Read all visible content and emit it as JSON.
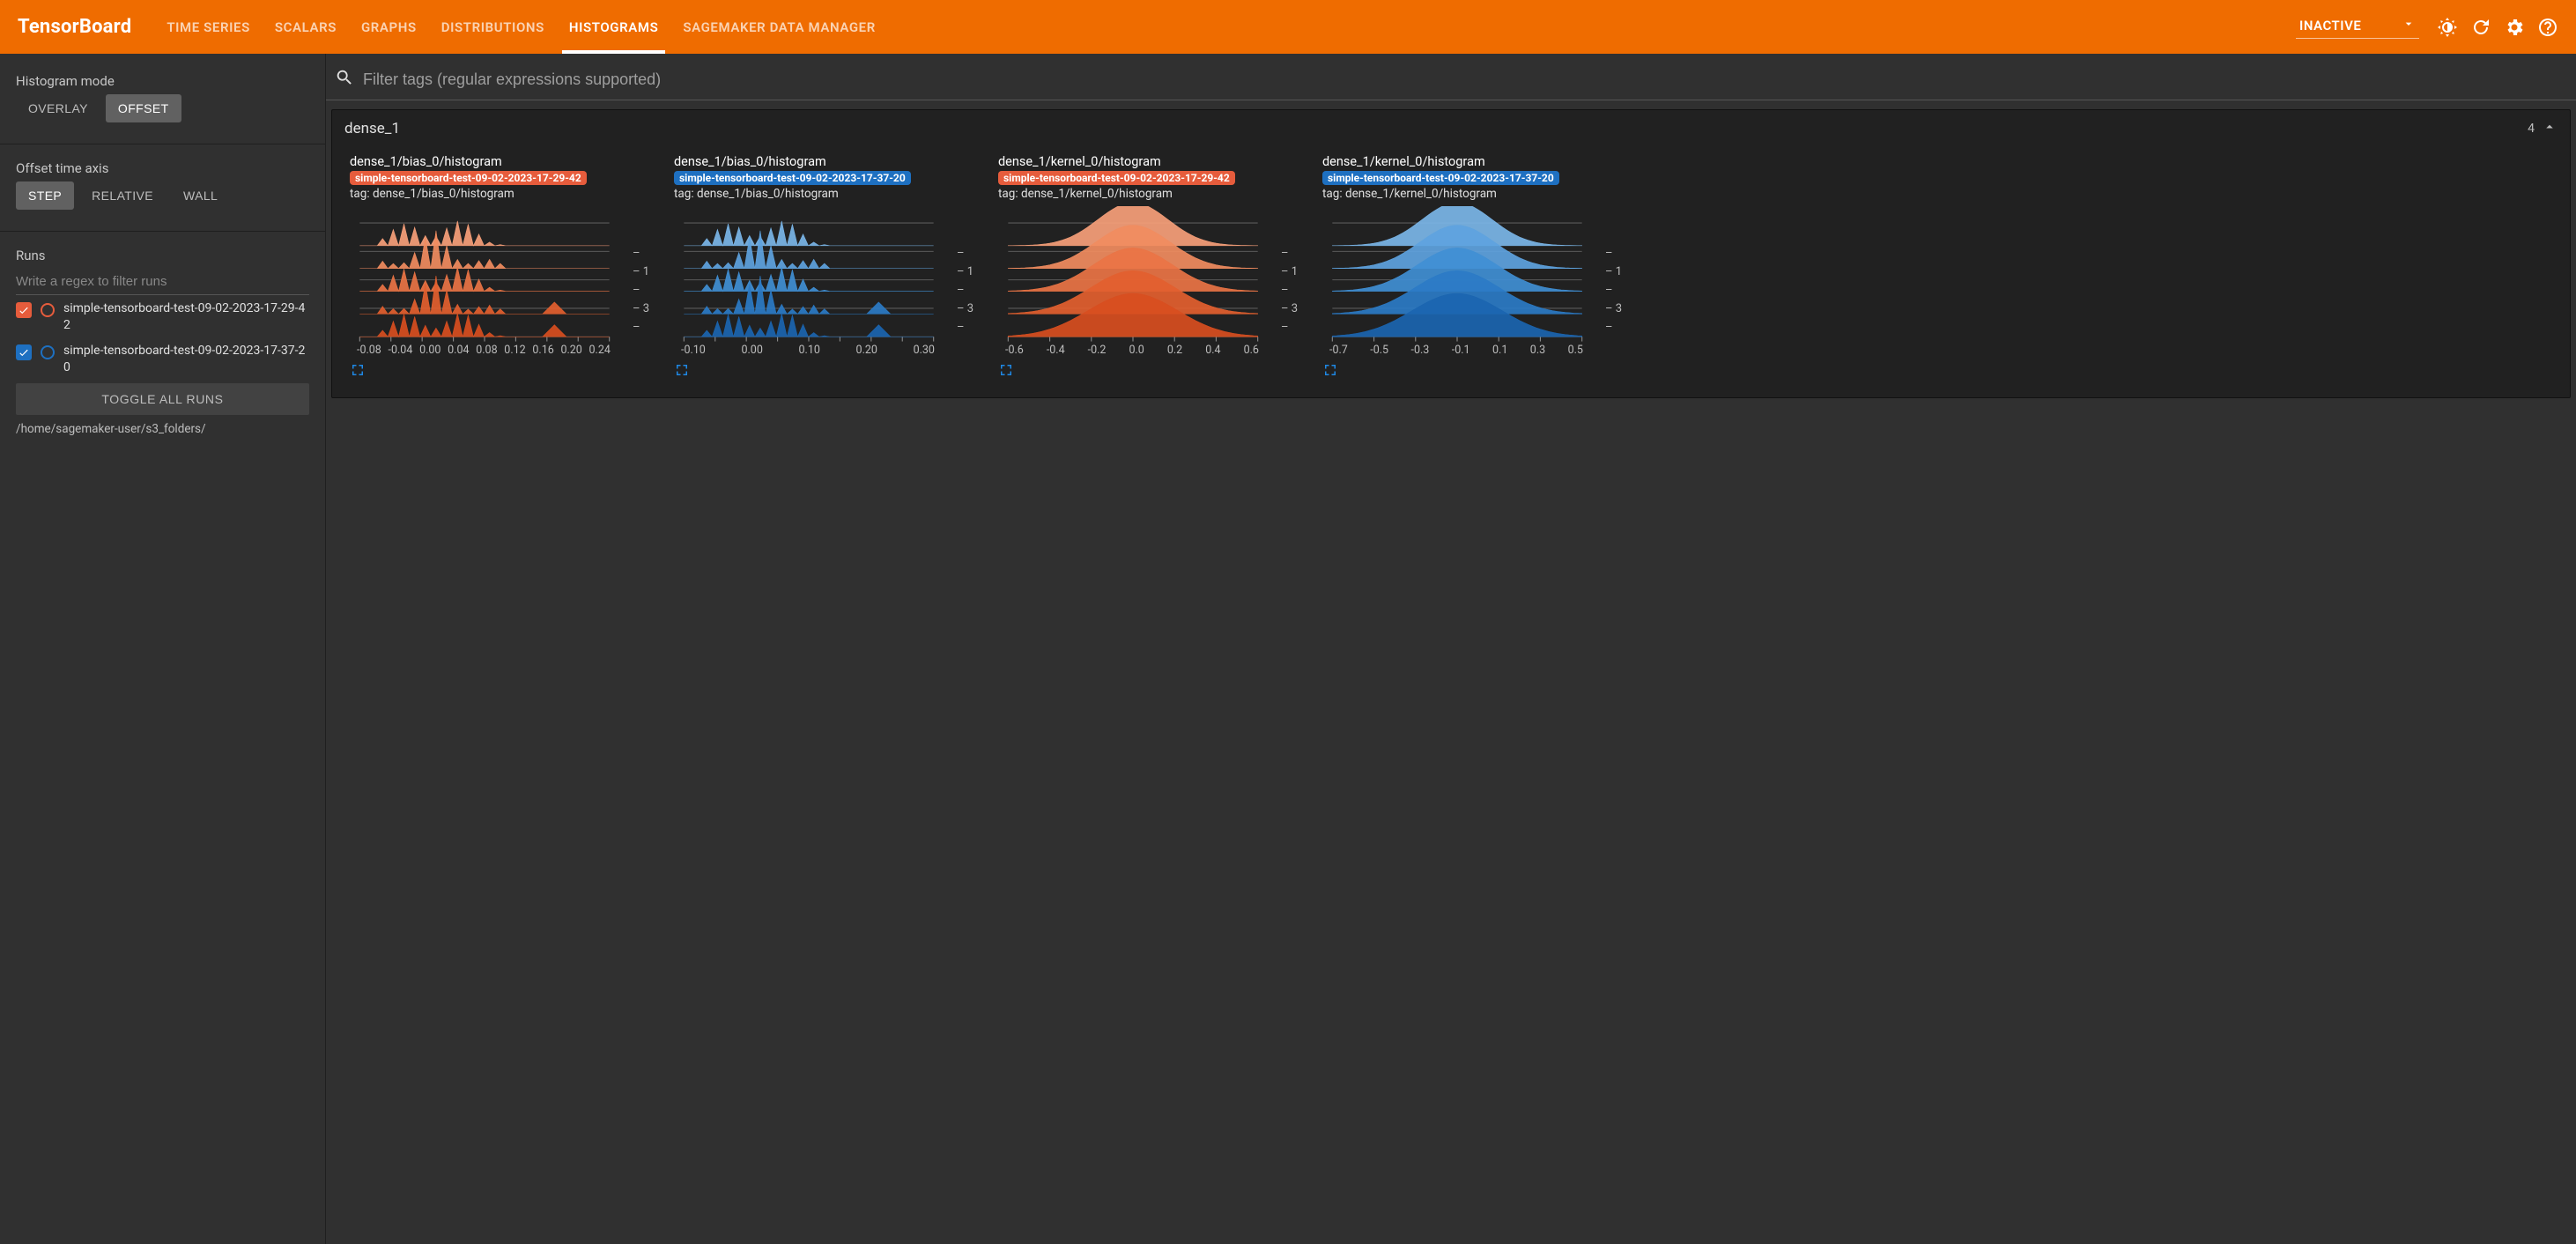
{
  "brand": "TensorBoard",
  "colors": {
    "topbar_bg": "#ef6c00",
    "app_bg": "#303030",
    "panel_bg": "#212121",
    "text": "#e0e0e0",
    "accent_blue": "#1e88e5"
  },
  "typography": {
    "base_font": "Roboto, Arial, sans-serif",
    "brand_fontsize": 22,
    "tab_fontsize": 15
  },
  "tabs": [
    {
      "key": "time_series",
      "label": "TIME SERIES",
      "active": false
    },
    {
      "key": "scalars",
      "label": "SCALARS",
      "active": false
    },
    {
      "key": "graphs",
      "label": "GRAPHS",
      "active": false
    },
    {
      "key": "distributions",
      "label": "DISTRIBUTIONS",
      "active": false
    },
    {
      "key": "histograms",
      "label": "HISTOGRAMS",
      "active": true
    },
    {
      "key": "smdm",
      "label": "SAGEMAKER DATA MANAGER",
      "active": false
    }
  ],
  "status": {
    "label": "INACTIVE"
  },
  "sidebar": {
    "histogram_mode": {
      "label": "Histogram mode",
      "options": [
        "OVERLAY",
        "OFFSET"
      ],
      "selected": "OFFSET"
    },
    "offset_axis": {
      "label": "Offset time axis",
      "options": [
        "STEP",
        "RELATIVE",
        "WALL"
      ],
      "selected": "STEP"
    },
    "runs_label": "Runs",
    "runs_filter_placeholder": "Write a regex to filter runs",
    "runs": [
      {
        "name": "simple-tensorboard-test-09-02-2023-17-29-42",
        "color": "#e65c3c",
        "checked": true
      },
      {
        "name": "simple-tensorboard-test-09-02-2023-17-37-20",
        "color": "#1e70c1",
        "checked": true
      }
    ],
    "toggle_all": "TOGGLE ALL RUNS",
    "logdir": "/home/sagemaker-user/s3_folders/"
  },
  "tag_filter_placeholder": "Filter tags (regular expressions supported)",
  "group": {
    "name": "dense_1",
    "count": "4",
    "cards": [
      {
        "title": "dense_1/bias_0/histogram",
        "run_chip": "simple-tensorboard-test-09-02-2023-17-29-42",
        "run_color": "#e65c3c",
        "tag": "tag: dense_1/bias_0/histogram",
        "chart": {
          "type": "offset_histogram_spiky",
          "palette": [
            "#f7a07a",
            "#f18c5f",
            "#ea7445",
            "#e3602f",
            "#d84e20"
          ],
          "ylabels": [
            "–",
            "– 1",
            "–",
            "– 3",
            "–"
          ],
          "xticks": [
            "-0.08",
            "-0.04",
            "0.00",
            "0.04",
            "0.08",
            "0.12",
            "0.16",
            "0.20",
            "0.24"
          ],
          "grid_color": "#5a5a5a",
          "grid_lines": 5
        }
      },
      {
        "title": "dense_1/bias_0/histogram",
        "run_chip": "simple-tensorboard-test-09-02-2023-17-37-20",
        "run_color": "#1e70c1",
        "tag": "tag: dense_1/bias_0/histogram",
        "chart": {
          "type": "offset_histogram_spiky",
          "palette": [
            "#7bb6e8",
            "#5ea3df",
            "#408fd4",
            "#2b7bc6",
            "#1b65b0"
          ],
          "ylabels": [
            "–",
            "– 1",
            "–",
            "– 3",
            "–"
          ],
          "xticks": [
            "-0.10",
            "",
            "0.00",
            "",
            "0.10",
            "",
            "0.20",
            "",
            "0.30"
          ],
          "grid_color": "#5a5a5a",
          "grid_lines": 5
        }
      },
      {
        "title": "dense_1/kernel_0/histogram",
        "run_chip": "simple-tensorboard-test-09-02-2023-17-29-42",
        "run_color": "#e65c3c",
        "tag": "tag: dense_1/kernel_0/histogram",
        "chart": {
          "type": "offset_histogram_smooth",
          "palette": [
            "#f7a07a",
            "#f18c5f",
            "#ea7445",
            "#e3602f",
            "#d84e20"
          ],
          "ylabels": [
            "–",
            "– 1",
            "–",
            "– 3",
            "–"
          ],
          "xticks": [
            "-0.6",
            "-0.4",
            "-0.2",
            "0.0",
            "0.2",
            "0.4",
            "0.6"
          ],
          "grid_color": "#5a5a5a",
          "grid_lines": 5
        }
      },
      {
        "title": "dense_1/kernel_0/histogram",
        "run_chip": "simple-tensorboard-test-09-02-2023-17-37-20",
        "run_color": "#1e70c1",
        "tag": "tag: dense_1/kernel_0/histogram",
        "chart": {
          "type": "offset_histogram_smooth",
          "palette": [
            "#7bb6e8",
            "#5ea3df",
            "#408fd4",
            "#2b7bc6",
            "#1b65b0"
          ],
          "ylabels": [
            "–",
            "– 1",
            "–",
            "– 3",
            "–"
          ],
          "xticks": [
            "-0.7",
            "-0.5",
            "-0.3",
            "-0.1",
            "0.1",
            "0.3",
            "0.5"
          ],
          "grid_color": "#5a5a5a",
          "grid_lines": 5
        }
      }
    ]
  }
}
